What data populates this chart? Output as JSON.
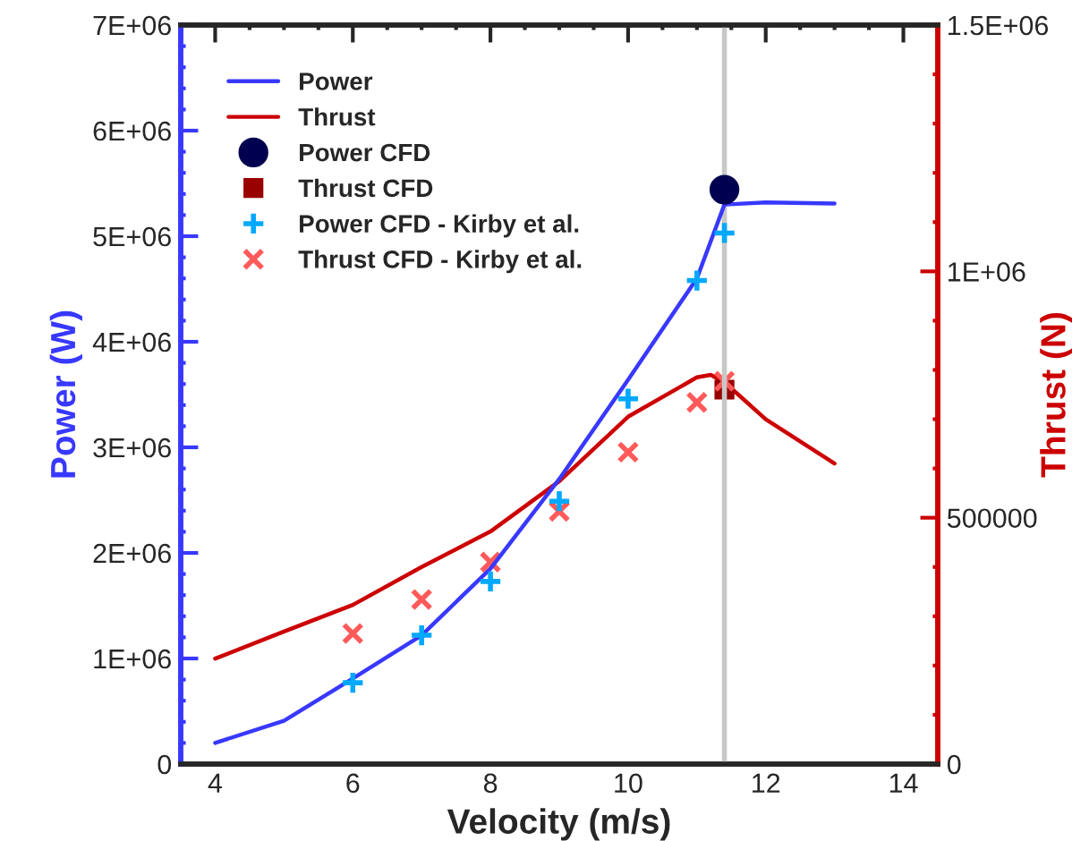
{
  "chart_data": {
    "type": "line",
    "xlabel": "Velocity (m/s)",
    "ylabel": "Power (W)",
    "y2label": "Thrust (N)",
    "xlim": [
      3.5,
      14.5
    ],
    "xticks": [
      4,
      6,
      8,
      10,
      12,
      14
    ],
    "ylim": [
      0,
      7000000
    ],
    "yticks": [
      0,
      {
        "value": 1000000,
        "label": "1E+06"
      },
      {
        "value": 2000000,
        "label": "2E+06"
      },
      {
        "value": 3000000,
        "label": "3E+06"
      },
      {
        "value": 4000000,
        "label": "4E+06"
      },
      {
        "value": 5000000,
        "label": "5E+06"
      },
      {
        "value": 6000000,
        "label": "6E+06"
      },
      {
        "value": 7000000,
        "label": "7E+06"
      }
    ],
    "y2lim": [
      0,
      1500000
    ],
    "y2ticks": [
      0,
      500000,
      {
        "value": 1000000,
        "label": "1E+06"
      },
      {
        "value": 1500000,
        "label": "1.5E+06"
      }
    ],
    "grid": false,
    "legend": "top left",
    "ref_lines": [
      {
        "axis": "x",
        "value": 11.4,
        "color": "#c8c8c8"
      }
    ],
    "series": [
      {
        "name": "Power",
        "color": "#3838ff",
        "marker": "none",
        "x": [
          4,
          5,
          6,
          7,
          8,
          9,
          10,
          11,
          11.4,
          12,
          13
        ],
        "values": [
          200000,
          410000,
          810000,
          1220000,
          1850000,
          2700000,
          3640000,
          4600000,
          5300000,
          5320000,
          5310000
        ]
      },
      {
        "name": "Thrust",
        "axis": "y2",
        "color": "#cc0000",
        "marker": "none",
        "x": [
          4,
          5,
          6,
          7,
          8,
          9,
          10,
          11,
          11.2,
          11.4,
          11.6,
          12,
          13
        ],
        "values": [
          214000,
          269000,
          323000,
          400000,
          472000,
          574000,
          705000,
          785000,
          790000,
          775000,
          750000,
          700000,
          610000
        ]
      },
      {
        "name": "Power CFD",
        "type": "scatter",
        "color": "#000050",
        "marker": "circle",
        "x": [
          11.4
        ],
        "values": [
          5440000
        ]
      },
      {
        "name": "Thrust CFD",
        "type": "scatter",
        "axis": "y2",
        "color": "#990000",
        "marker": "square",
        "x": [
          11.4
        ],
        "values": [
          760000
        ]
      },
      {
        "name": "Power CFD - Kirby et al.",
        "type": "scatter",
        "color": "#00a8ff",
        "marker": "plus",
        "x": [
          6,
          7,
          8,
          9,
          10,
          11,
          11.4
        ],
        "values": [
          770000,
          1220000,
          1730000,
          2490000,
          3460000,
          4580000,
          5030000
        ]
      },
      {
        "name": "Thrust CFD - Kirby et al.",
        "type": "scatter",
        "axis": "y2",
        "color": "#ff5a5a",
        "marker": "cross",
        "x": [
          6,
          7,
          8,
          9,
          10,
          11,
          11.4
        ],
        "values": [
          265000,
          334000,
          410000,
          513000,
          633000,
          734000,
          777000
        ]
      }
    ]
  }
}
